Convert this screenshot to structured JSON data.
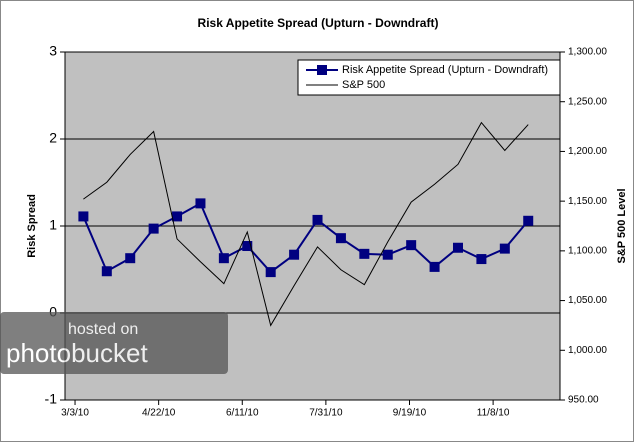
{
  "chart_data": {
    "type": "line",
    "title": "Risk Appetite Spread (Upturn - Downdraft)",
    "ylabel": "Risk Spread",
    "y2label": "S&P 500 Level",
    "x": [
      "2010-03-08",
      "2010-03-22",
      "2010-04-05",
      "2010-04-19",
      "2010-05-03",
      "2010-05-17",
      "2010-05-31",
      "2010-06-14",
      "2010-06-28",
      "2010-07-12",
      "2010-07-26",
      "2010-08-09",
      "2010-08-23",
      "2010-09-06",
      "2010-09-20",
      "2010-10-04",
      "2010-10-18",
      "2010-11-01",
      "2010-11-15",
      "2010-11-29"
    ],
    "xlim": [
      "2010-02-25",
      "2010-12-18"
    ],
    "xticks": [
      {
        "value": "2010-03-03",
        "label": "3/3/10"
      },
      {
        "value": "2010-04-22",
        "label": "4/22/10"
      },
      {
        "value": "2010-06-11",
        "label": "6/11/10"
      },
      {
        "value": "2010-07-31",
        "label": "7/31/10"
      },
      {
        "value": "2010-09-19",
        "label": "9/19/10"
      },
      {
        "value": "2010-11-08",
        "label": "11/8/10"
      }
    ],
    "ylim": [
      -1,
      3
    ],
    "yticks": [
      -1,
      0,
      1,
      2,
      3
    ],
    "y2lim": [
      950,
      1300
    ],
    "y2ticks": [
      {
        "value": 950,
        "label": "950.00"
      },
      {
        "value": 1000,
        "label": "1,000.00"
      },
      {
        "value": 1050,
        "label": "1,050.00"
      },
      {
        "value": 1100,
        "label": "1,100.00"
      },
      {
        "value": 1150,
        "label": "1,150.00"
      },
      {
        "value": 1200,
        "label": "1,200.00"
      },
      {
        "value": 1250,
        "label": "1,250.00"
      },
      {
        "value": 1300,
        "label": "1,300.00"
      }
    ],
    "grid": true,
    "legend": "upper right",
    "series": [
      {
        "name": "Risk Appetite Spread (Upturn - Downdraft)",
        "color": "#000080",
        "marker": "square",
        "values": [
          1.11,
          0.48,
          0.63,
          0.97,
          1.11,
          1.26,
          0.63,
          0.77,
          0.47,
          0.67,
          1.07,
          0.86,
          0.68,
          0.67,
          0.78,
          0.53,
          0.75,
          0.62,
          0.74,
          1.06
        ]
      },
      {
        "name": "S&P 500",
        "color": "#000000",
        "axis": "y2",
        "values": [
          1152,
          1169,
          1197,
          1220,
          1112,
          1089,
          1067,
          1119,
          1025,
          1065,
          1104,
          1081,
          1066,
          1109,
          1149,
          1167,
          1187,
          1229,
          1201,
          1227
        ]
      }
    ],
    "watermark": [
      "hosted on",
      "photobucket"
    ]
  }
}
